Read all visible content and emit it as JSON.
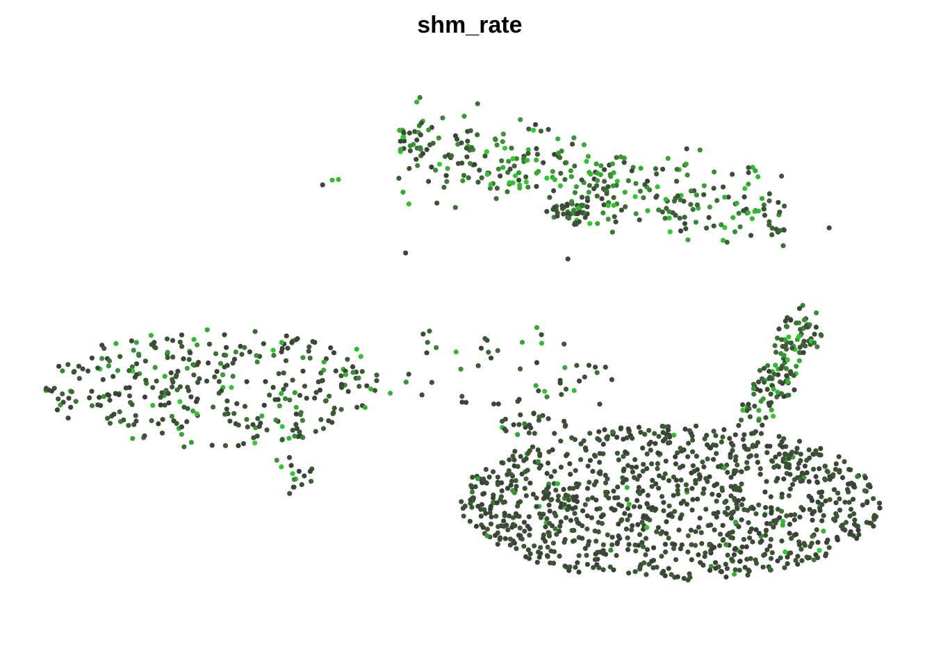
{
  "chart_data": {
    "type": "scatter",
    "title": "shm_rate",
    "xlabel": "",
    "ylabel": "",
    "axes_visible": false,
    "grid": false,
    "legend": "none",
    "xlim": [
      0,
      100
    ],
    "ylim": [
      0,
      100
    ],
    "colors": {
      "low": "#3a3e36",
      "mid": "#3e6f35",
      "high": "#2fcf2f"
    },
    "clusters": [
      {
        "name": "top-right",
        "cx": 64,
        "cy": 78,
        "rx": 22,
        "ry": 13,
        "n": 360,
        "shape": "band",
        "green": 0.65,
        "seed": 11
      },
      {
        "name": "top-right-knot",
        "cx": 61.5,
        "cy": 72.5,
        "rx": 2.2,
        "ry": 2.0,
        "n": 35,
        "shape": "blob",
        "green": 0.3,
        "seed": 12
      },
      {
        "name": "left",
        "cx": 21,
        "cy": 43,
        "rx": 19,
        "ry": 10,
        "n": 330,
        "shape": "blob",
        "green": 0.35,
        "seed": 21
      },
      {
        "name": "left-tail",
        "cx": 30,
        "cy": 29,
        "rx": 3,
        "ry": 3.5,
        "n": 15,
        "shape": "blob",
        "green": 0.3,
        "seed": 22
      },
      {
        "name": "bottom-right",
        "cx": 73,
        "cy": 24,
        "rx": 24,
        "ry": 13,
        "n": 1050,
        "shape": "blob",
        "green": 0.05,
        "seed": 31
      },
      {
        "name": "right-arm",
        "cx": 85.5,
        "cy": 47,
        "rx": 5.5,
        "ry": 10,
        "n": 140,
        "shape": "arm",
        "green": 0.65,
        "seed": 41
      },
      {
        "name": "middle-sparse",
        "cx": 52,
        "cy": 47,
        "rx": 16,
        "ry": 7,
        "n": 55,
        "shape": "blob",
        "green": 0.45,
        "seed": 51
      },
      {
        "name": "middle-low",
        "cx": 57,
        "cy": 37,
        "rx": 4,
        "ry": 2,
        "n": 25,
        "shape": "blob",
        "green": 0.2,
        "seed": 52
      }
    ],
    "outliers": [
      {
        "x": 34.5,
        "y": 78,
        "v": 0.9
      },
      {
        "x": 35.2,
        "y": 78.1,
        "v": 0.9
      },
      {
        "x": 33.4,
        "y": 77.2,
        "v": 0.1
      },
      {
        "x": 42.8,
        "y": 65.8,
        "v": 0.1
      },
      {
        "x": 61.2,
        "y": 64.8,
        "v": 0.1
      },
      {
        "x": 90.8,
        "y": 70,
        "v": 0.1
      },
      {
        "x": 30.1,
        "y": 26.6,
        "v": 0.1
      },
      {
        "x": 64.8,
        "y": 40.5,
        "v": 0.1
      }
    ]
  }
}
